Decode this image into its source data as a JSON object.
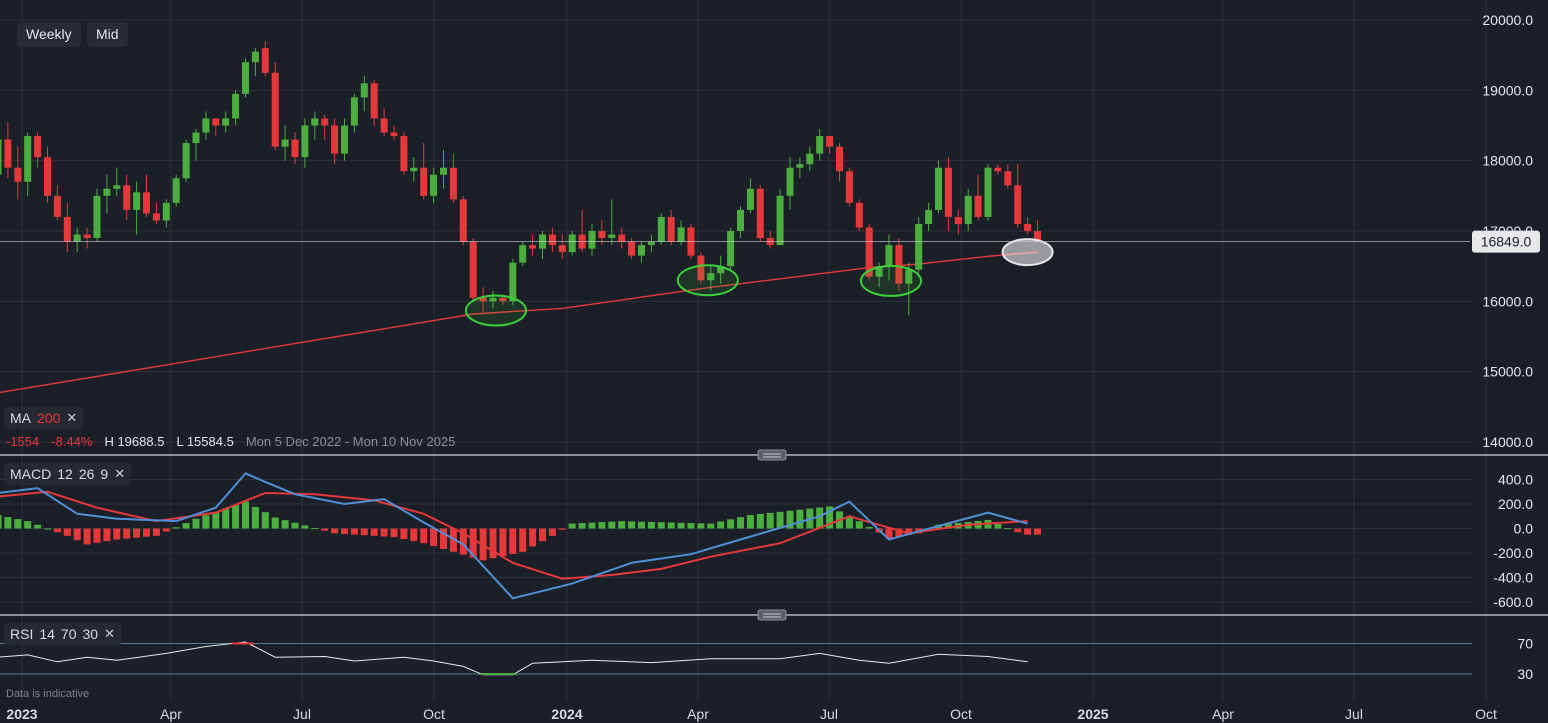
{
  "controls": {
    "interval_label": "Weekly",
    "price_type_label": "Mid"
  },
  "ma": {
    "label": "MA",
    "period": "200",
    "color": "#e5383b"
  },
  "stats": {
    "change": "-1554",
    "change_pct": "-8.44%",
    "high_label": "H 19688.5",
    "low_label": "L 15584.5",
    "range": "Mon 5 Dec 2022 - Mon 10 Nov 2025"
  },
  "macd": {
    "label": "MACD",
    "fast": "12",
    "slow": "26",
    "signal": "9",
    "macd_color": "#4f8fd6",
    "signal_color": "#e5383b"
  },
  "rsi": {
    "label": "RSI",
    "period": "14",
    "upper": "70",
    "lower": "30"
  },
  "current_price": "16849.0",
  "disclaimer": "Data is indicative",
  "colors": {
    "up": "#4cae3f",
    "down": "#e5383b",
    "background": "#1b1f27",
    "grid": "#2c313a",
    "highlight_green": "#3ccf3c",
    "highlight_white": "#e8e8e8"
  },
  "chart_data": [
    {
      "type": "candlestick",
      "x_axis_labels": [
        "2023",
        "Apr",
        "Jul",
        "Oct",
        "2024",
        "Apr",
        "Jul",
        "Oct",
        "2025",
        "Apr",
        "Jul",
        "Oct"
      ],
      "y_ticks": [
        "20000.0",
        "19000.0",
        "18000.0",
        "17000.0",
        "16000.0",
        "15000.0",
        "14000.0"
      ],
      "ylim": [
        14000,
        20000
      ],
      "candles": [
        [
          17800,
          18450,
          17650,
          18300
        ],
        [
          18300,
          18550,
          17750,
          17900
        ],
        [
          17900,
          18200,
          17450,
          17700
        ],
        [
          17700,
          18400,
          17500,
          18350
        ],
        [
          18350,
          18400,
          17900,
          18050
        ],
        [
          18050,
          18200,
          17400,
          17500
        ],
        [
          17500,
          17650,
          17150,
          17200
        ],
        [
          17200,
          17400,
          16700,
          16850
        ],
        [
          16850,
          17050,
          16700,
          16950
        ],
        [
          16950,
          17050,
          16750,
          16900
        ],
        [
          16900,
          17600,
          16850,
          17500
        ],
        [
          17500,
          17800,
          17250,
          17600
        ],
        [
          17600,
          17900,
          17500,
          17650
        ],
        [
          17650,
          17800,
          17150,
          17300
        ],
        [
          17300,
          17700,
          16950,
          17550
        ],
        [
          17550,
          17800,
          17200,
          17250
        ],
        [
          17250,
          17400,
          17100,
          17150
        ],
        [
          17150,
          17450,
          17050,
          17400
        ],
        [
          17400,
          17800,
          17350,
          17750
        ],
        [
          17750,
          18300,
          17700,
          18250
        ],
        [
          18250,
          18450,
          18000,
          18400
        ],
        [
          18400,
          18700,
          18300,
          18600
        ],
        [
          18600,
          18550,
          18350,
          18500
        ],
        [
          18500,
          18700,
          18400,
          18600
        ],
        [
          18600,
          19000,
          18500,
          18950
        ],
        [
          18950,
          19450,
          18900,
          19400
        ],
        [
          19400,
          19600,
          19200,
          19550
        ],
        [
          19600,
          19700,
          19200,
          19250
        ],
        [
          19250,
          19400,
          18150,
          18200
        ],
        [
          18200,
          18500,
          18000,
          18300
        ],
        [
          18300,
          18400,
          17950,
          18050
        ],
        [
          18050,
          18600,
          17900,
          18500
        ],
        [
          18500,
          18700,
          18300,
          18600
        ],
        [
          18600,
          18650,
          18300,
          18500
        ],
        [
          18500,
          18600,
          17950,
          18100
        ],
        [
          18100,
          18600,
          18000,
          18500
        ],
        [
          18500,
          18950,
          18400,
          18900
        ],
        [
          18900,
          19200,
          18700,
          19100
        ],
        [
          19100,
          19150,
          18500,
          18600
        ],
        [
          18600,
          18750,
          18350,
          18400
        ],
        [
          18400,
          18500,
          18300,
          18350
        ],
        [
          18350,
          18400,
          17800,
          17850
        ],
        [
          17850,
          18050,
          17700,
          17900
        ],
        [
          17900,
          18250,
          17450,
          17500
        ],
        [
          17500,
          17900,
          17400,
          17800
        ],
        [
          17800,
          18150,
          17600,
          17900
        ],
        [
          17900,
          18100,
          17400,
          17450
        ],
        [
          17450,
          17500,
          16800,
          16850
        ],
        [
          16850,
          16900,
          16000,
          16050
        ],
        [
          16050,
          16200,
          15850,
          16000
        ],
        [
          16000,
          16150,
          15900,
          16050
        ],
        [
          16050,
          16100,
          15950,
          16000
        ],
        [
          16000,
          16600,
          15950,
          16550
        ],
        [
          16550,
          16850,
          16500,
          16800
        ],
        [
          16800,
          16950,
          16650,
          16750
        ],
        [
          16750,
          17000,
          16600,
          16950
        ],
        [
          16950,
          17050,
          16700,
          16800
        ],
        [
          16800,
          16950,
          16600,
          16700
        ],
        [
          16700,
          17000,
          16650,
          16950
        ],
        [
          16950,
          17300,
          16700,
          16750
        ],
        [
          16750,
          17100,
          16650,
          17000
        ],
        [
          17000,
          17150,
          16800,
          16900
        ],
        [
          16900,
          17450,
          16800,
          16950
        ],
        [
          16950,
          17050,
          16750,
          16850
        ],
        [
          16850,
          16900,
          16600,
          16650
        ],
        [
          16650,
          16850,
          16550,
          16800
        ],
        [
          16800,
          16950,
          16700,
          16850
        ],
        [
          16850,
          17250,
          16800,
          17200
        ],
        [
          17200,
          17300,
          16800,
          16850
        ],
        [
          16850,
          17150,
          16800,
          17050
        ],
        [
          17050,
          17100,
          16600,
          16650
        ],
        [
          16650,
          16700,
          16250,
          16300
        ],
        [
          16300,
          16500,
          16150,
          16400
        ],
        [
          16400,
          16650,
          16250,
          16500
        ],
        [
          16500,
          17050,
          16450,
          17000
        ],
        [
          17000,
          17350,
          16900,
          17300
        ],
        [
          17300,
          17750,
          17250,
          17600
        ],
        [
          17600,
          17650,
          16850,
          16900
        ],
        [
          16900,
          17000,
          16750,
          16800
        ],
        [
          16800,
          17600,
          16800,
          17500
        ],
        [
          17500,
          18050,
          17300,
          17900
        ],
        [
          17900,
          18050,
          17750,
          17950
        ],
        [
          17950,
          18200,
          17850,
          18100
        ],
        [
          18100,
          18450,
          18000,
          18350
        ],
        [
          18350,
          18300,
          18100,
          18200
        ],
        [
          18200,
          18250,
          17700,
          17850
        ],
        [
          17850,
          17900,
          17350,
          17400
        ],
        [
          17400,
          17450,
          17000,
          17050
        ],
        [
          17050,
          17100,
          16300,
          16350
        ],
        [
          16350,
          16550,
          16200,
          16500
        ],
        [
          16500,
          16950,
          16300,
          16800
        ],
        [
          16800,
          16900,
          16150,
          16250
        ],
        [
          16250,
          16550,
          15800,
          16450
        ],
        [
          16450,
          17200,
          16400,
          17100
        ],
        [
          17100,
          17400,
          17000,
          17300
        ],
        [
          17300,
          18000,
          17250,
          17900
        ],
        [
          17900,
          18050,
          17000,
          17200
        ],
        [
          17200,
          17300,
          16950,
          17100
        ],
        [
          17100,
          17600,
          17000,
          17500
        ],
        [
          17500,
          17800,
          17150,
          17200
        ],
        [
          17200,
          17950,
          17150,
          17900
        ],
        [
          17900,
          17950,
          17800,
          17850
        ],
        [
          17850,
          17950,
          17600,
          17650
        ],
        [
          17650,
          17950,
          17050,
          17100
        ],
        [
          17100,
          17200,
          16950,
          17000
        ],
        [
          17000,
          17150,
          16850,
          16849
        ]
      ],
      "ma200": [
        [
          0,
          14700
        ],
        [
          48,
          15820
        ],
        [
          57,
          15900
        ],
        [
          66,
          16080
        ],
        [
          72,
          16200
        ],
        [
          79,
          16320
        ],
        [
          88,
          16480
        ],
        [
          93,
          16530
        ],
        [
          100,
          16640
        ],
        [
          105,
          16700
        ]
      ],
      "highlights": [
        {
          "index": 50.3,
          "price": 15870,
          "color": "green"
        },
        {
          "index": 71.7,
          "price": 16300,
          "color": "green"
        },
        {
          "index": 90.2,
          "price": 16290,
          "color": "green"
        },
        {
          "index": 104.0,
          "price": 16700,
          "color": "white"
        }
      ],
      "current_price": 16849.0
    },
    {
      "type": "macd",
      "y_ticks": [
        "400.0",
        "200.0",
        "0.0",
        "-200.0",
        "-400.0",
        "-600.0"
      ],
      "ylim": [
        -650,
        450
      ],
      "macd_line": [
        [
          0,
          290
        ],
        [
          4,
          330
        ],
        [
          8,
          120
        ],
        [
          12,
          80
        ],
        [
          18,
          60
        ],
        [
          22,
          170
        ],
        [
          25,
          450
        ],
        [
          27,
          380
        ],
        [
          30,
          280
        ],
        [
          35,
          200
        ],
        [
          39,
          240
        ],
        [
          43,
          50
        ],
        [
          47,
          -130
        ],
        [
          52,
          -570
        ],
        [
          58,
          -450
        ],
        [
          64,
          -280
        ],
        [
          70,
          -210
        ],
        [
          75,
          -90
        ],
        [
          83,
          100
        ],
        [
          86,
          220
        ],
        [
          90,
          -90
        ],
        [
          95,
          20
        ],
        [
          100,
          130
        ],
        [
          104,
          40
        ]
      ],
      "signal_line": [
        [
          0,
          260
        ],
        [
          5,
          300
        ],
        [
          10,
          170
        ],
        [
          16,
          60
        ],
        [
          22,
          130
        ],
        [
          27,
          290
        ],
        [
          32,
          280
        ],
        [
          38,
          230
        ],
        [
          43,
          120
        ],
        [
          47,
          -40
        ],
        [
          52,
          -280
        ],
        [
          57,
          -410
        ],
        [
          62,
          -380
        ],
        [
          67,
          -330
        ],
        [
          72,
          -230
        ],
        [
          79,
          -120
        ],
        [
          86,
          100
        ],
        [
          92,
          -40
        ],
        [
          98,
          30
        ],
        [
          104,
          60
        ]
      ],
      "histogram_profile": [
        [
          0,
          110
        ],
        [
          3,
          60
        ],
        [
          7,
          -60
        ],
        [
          9,
          -130
        ],
        [
          12,
          -90
        ],
        [
          16,
          -60
        ],
        [
          20,
          80
        ],
        [
          25,
          220
        ],
        [
          28,
          90
        ],
        [
          34,
          -40
        ],
        [
          40,
          -70
        ],
        [
          43,
          -120
        ],
        [
          49,
          -260
        ],
        [
          53,
          -190
        ],
        [
          56,
          -60
        ],
        [
          58,
          40
        ],
        [
          63,
          60
        ],
        [
          72,
          40
        ],
        [
          76,
          110
        ],
        [
          84,
          180
        ],
        [
          87,
          60
        ],
        [
          90,
          -80
        ],
        [
          93,
          -40
        ],
        [
          95,
          30
        ],
        [
          100,
          70
        ],
        [
          103,
          -30
        ],
        [
          104,
          -50
        ]
      ]
    },
    {
      "type": "rsi",
      "y_ticks": [
        "70",
        "30"
      ],
      "ylim": [
        15,
        85
      ],
      "rsi_line": [
        [
          0,
          52
        ],
        [
          3,
          55
        ],
        [
          6,
          46
        ],
        [
          9,
          52
        ],
        [
          12,
          48
        ],
        [
          17,
          57
        ],
        [
          21,
          66
        ],
        [
          25,
          72
        ],
        [
          28,
          52
        ],
        [
          33,
          53
        ],
        [
          36,
          47
        ],
        [
          41,
          52
        ],
        [
          44,
          47
        ],
        [
          47,
          40
        ],
        [
          49,
          29
        ],
        [
          52,
          29
        ],
        [
          54,
          44
        ],
        [
          60,
          48
        ],
        [
          66,
          45
        ],
        [
          72,
          50
        ],
        [
          79,
          50
        ],
        [
          83,
          57
        ],
        [
          87,
          48
        ],
        [
          90,
          44
        ],
        [
          95,
          56
        ],
        [
          100,
          53
        ],
        [
          104,
          46
        ]
      ]
    }
  ]
}
